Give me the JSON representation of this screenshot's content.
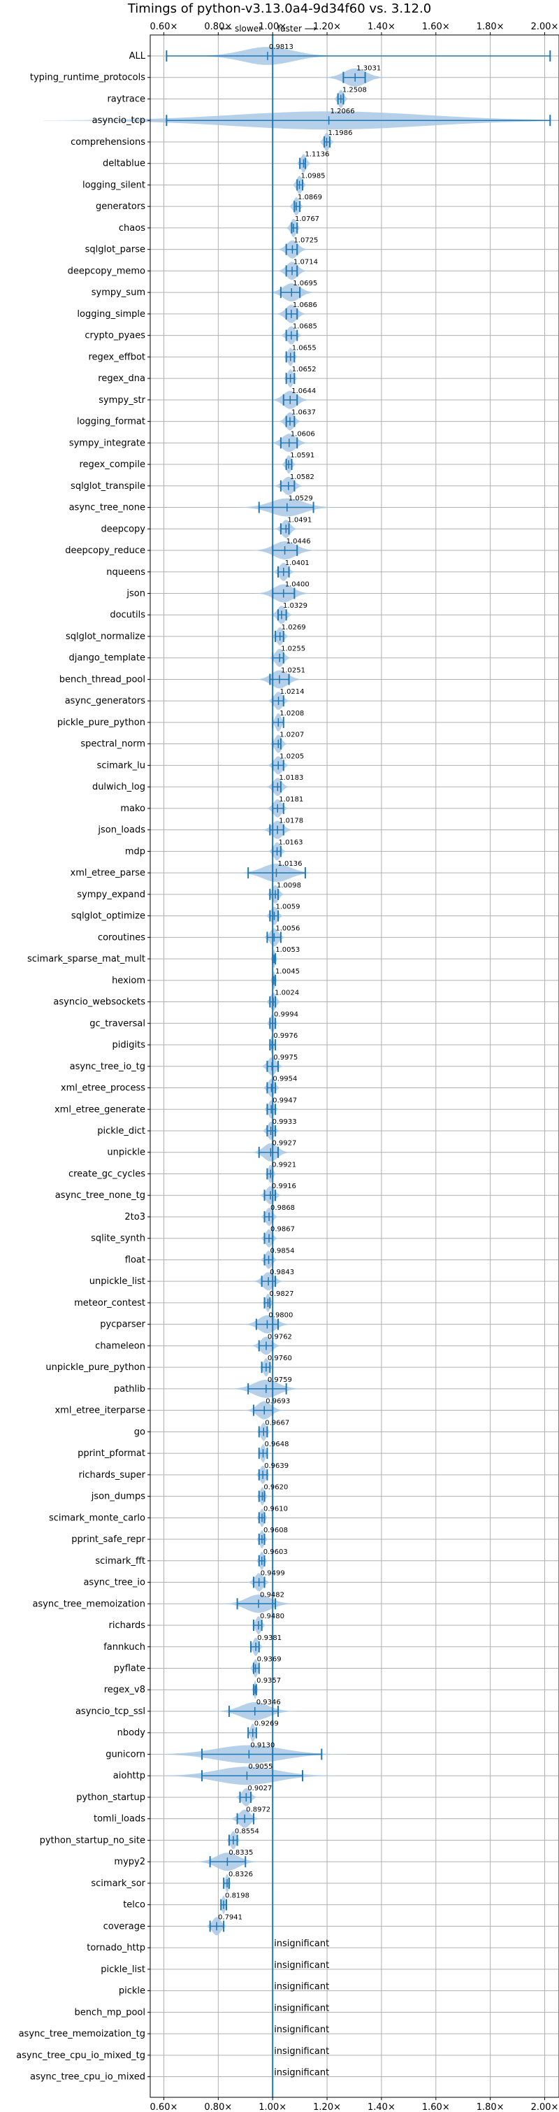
{
  "chart_data": {
    "type": "violin",
    "title": "Timings of python-v3.13.0a4-9d34f60 vs. 3.12.0",
    "subtitle_left": "⟵ slower",
    "subtitle_right": "faster ⟶",
    "xlim": [
      0.55,
      2.05
    ],
    "xticks": [
      0.6,
      0.8,
      1.0,
      1.2,
      1.4,
      1.6,
      1.8,
      2.0
    ],
    "xtick_labels": [
      "0.60×",
      "0.80×",
      "1.00×",
      "1.20×",
      "1.40×",
      "1.60×",
      "1.80×",
      "2.00×"
    ],
    "reference_line": 1.0,
    "insignificant_label": "insignificant",
    "grid": true,
    "benchmarks": [
      {
        "name": "ALL",
        "value": 0.9813,
        "label": "0.9813",
        "min": 0.61,
        "max": 2.02,
        "spread": 0.09
      },
      {
        "name": "typing_runtime_protocols",
        "value": 1.3031,
        "label": "1.3031",
        "min": 1.26,
        "max": 1.34,
        "spread": 0.04
      },
      {
        "name": "raytrace",
        "value": 1.2508,
        "label": "1.2508",
        "min": 1.24,
        "max": 1.26,
        "spread": 0.01
      },
      {
        "name": "asyncio_tcp",
        "value": 1.2066,
        "label": "1.2066",
        "min": 0.61,
        "max": 2.02,
        "spread": 0.35
      },
      {
        "name": "comprehensions",
        "value": 1.1986,
        "label": "1.1986",
        "min": 1.19,
        "max": 1.21,
        "spread": 0.01
      },
      {
        "name": "deltablue",
        "value": 1.1136,
        "label": "1.1136",
        "min": 1.1,
        "max": 1.12,
        "spread": 0.01
      },
      {
        "name": "logging_silent",
        "value": 1.0985,
        "label": "1.0985",
        "min": 1.09,
        "max": 1.11,
        "spread": 0.01
      },
      {
        "name": "generators",
        "value": 1.0869,
        "label": "1.0869",
        "min": 1.08,
        "max": 1.1,
        "spread": 0.01
      },
      {
        "name": "chaos",
        "value": 1.0767,
        "label": "1.0767",
        "min": 1.07,
        "max": 1.09,
        "spread": 0.01
      },
      {
        "name": "sqlglot_parse",
        "value": 1.0725,
        "label": "1.0725",
        "min": 1.05,
        "max": 1.09,
        "spread": 0.02
      },
      {
        "name": "deepcopy_memo",
        "value": 1.0714,
        "label": "1.0714",
        "min": 1.05,
        "max": 1.09,
        "spread": 0.02
      },
      {
        "name": "sympy_sum",
        "value": 1.0695,
        "label": "1.0695",
        "min": 1.03,
        "max": 1.1,
        "spread": 0.03
      },
      {
        "name": "logging_simple",
        "value": 1.0686,
        "label": "1.0686",
        "min": 1.05,
        "max": 1.09,
        "spread": 0.02
      },
      {
        "name": "crypto_pyaes",
        "value": 1.0685,
        "label": "1.0685",
        "min": 1.05,
        "max": 1.09,
        "spread": 0.015
      },
      {
        "name": "regex_effbot",
        "value": 1.0655,
        "label": "1.0655",
        "min": 1.05,
        "max": 1.08,
        "spread": 0.01
      },
      {
        "name": "regex_dna",
        "value": 1.0652,
        "label": "1.0652",
        "min": 1.05,
        "max": 1.08,
        "spread": 0.01
      },
      {
        "name": "sympy_str",
        "value": 1.0644,
        "label": "1.0644",
        "min": 1.04,
        "max": 1.09,
        "spread": 0.025
      },
      {
        "name": "logging_format",
        "value": 1.0637,
        "label": "1.0637",
        "min": 1.05,
        "max": 1.08,
        "spread": 0.015
      },
      {
        "name": "sympy_integrate",
        "value": 1.0606,
        "label": "1.0606",
        "min": 1.03,
        "max": 1.09,
        "spread": 0.025
      },
      {
        "name": "regex_compile",
        "value": 1.0591,
        "label": "1.0591",
        "min": 1.05,
        "max": 1.07,
        "spread": 0.01
      },
      {
        "name": "sqlglot_transpile",
        "value": 1.0582,
        "label": "1.0582",
        "min": 1.03,
        "max": 1.08,
        "spread": 0.02
      },
      {
        "name": "async_tree_none",
        "value": 1.0529,
        "label": "1.0529",
        "min": 0.95,
        "max": 1.15,
        "spread": 0.06
      },
      {
        "name": "deepcopy",
        "value": 1.0491,
        "label": "1.0491",
        "min": 1.03,
        "max": 1.06,
        "spread": 0.015
      },
      {
        "name": "deepcopy_reduce",
        "value": 1.0446,
        "label": "1.0446",
        "min": 1.0,
        "max": 1.09,
        "spread": 0.04
      },
      {
        "name": "nqueens",
        "value": 1.0401,
        "label": "1.0401",
        "min": 1.02,
        "max": 1.06,
        "spread": 0.015
      },
      {
        "name": "json",
        "value": 1.04,
        "label": "1.0400",
        "min": 1.0,
        "max": 1.08,
        "spread": 0.035
      },
      {
        "name": "docutils",
        "value": 1.0329,
        "label": "1.0329",
        "min": 1.02,
        "max": 1.05,
        "spread": 0.015
      },
      {
        "name": "sqlglot_normalize",
        "value": 1.0269,
        "label": "1.0269",
        "min": 1.01,
        "max": 1.04,
        "spread": 0.012
      },
      {
        "name": "django_template",
        "value": 1.0255,
        "label": "1.0255",
        "min": 1.0,
        "max": 1.04,
        "spread": 0.015
      },
      {
        "name": "bench_thread_pool",
        "value": 1.0251,
        "label": "1.0251",
        "min": 0.99,
        "max": 1.06,
        "spread": 0.03
      },
      {
        "name": "async_generators",
        "value": 1.0214,
        "label": "1.0214",
        "min": 1.0,
        "max": 1.04,
        "spread": 0.015
      },
      {
        "name": "pickle_pure_python",
        "value": 1.0208,
        "label": "1.0208",
        "min": 1.0,
        "max": 1.04,
        "spread": 0.01
      },
      {
        "name": "spectral_norm",
        "value": 1.0207,
        "label": "1.0207",
        "min": 1.0,
        "max": 1.03,
        "spread": 0.012
      },
      {
        "name": "scimark_lu",
        "value": 1.0205,
        "label": "1.0205",
        "min": 1.0,
        "max": 1.04,
        "spread": 0.015
      },
      {
        "name": "dulwich_log",
        "value": 1.0183,
        "label": "1.0183",
        "min": 1.0,
        "max": 1.03,
        "spread": 0.015
      },
      {
        "name": "mako",
        "value": 1.0181,
        "label": "1.0181",
        "min": 1.0,
        "max": 1.04,
        "spread": 0.015
      },
      {
        "name": "json_loads",
        "value": 1.0178,
        "label": "1.0178",
        "min": 0.99,
        "max": 1.04,
        "spread": 0.02
      },
      {
        "name": "mdp",
        "value": 1.0163,
        "label": "1.0163",
        "min": 1.0,
        "max": 1.03,
        "spread": 0.012
      },
      {
        "name": "xml_etree_parse",
        "value": 1.0136,
        "label": "1.0136",
        "min": 0.91,
        "max": 1.12,
        "spread": 0.05
      },
      {
        "name": "sympy_expand",
        "value": 1.0098,
        "label": "1.0098",
        "min": 0.99,
        "max": 1.02,
        "spread": 0.012
      },
      {
        "name": "sqlglot_optimize",
        "value": 1.0059,
        "label": "1.0059",
        "min": 0.99,
        "max": 1.02,
        "spread": 0.012
      },
      {
        "name": "coroutines",
        "value": 1.0056,
        "label": "1.0056",
        "min": 0.98,
        "max": 1.03,
        "spread": 0.015
      },
      {
        "name": "scimark_sparse_mat_mult",
        "value": 1.0053,
        "label": "1.0053",
        "min": 1.0,
        "max": 1.01,
        "spread": 0.005
      },
      {
        "name": "hexiom",
        "value": 1.0045,
        "label": "1.0045",
        "min": 1.0,
        "max": 1.01,
        "spread": 0.005
      },
      {
        "name": "asyncio_websockets",
        "value": 1.0024,
        "label": "1.0024",
        "min": 0.99,
        "max": 1.01,
        "spread": 0.01
      },
      {
        "name": "gc_traversal",
        "value": 0.9994,
        "label": "0.9994",
        "min": 0.99,
        "max": 1.01,
        "spread": 0.008
      },
      {
        "name": "pidigits",
        "value": 0.9976,
        "label": "0.9976",
        "min": 0.99,
        "max": 1.01,
        "spread": 0.005
      },
      {
        "name": "async_tree_io_tg",
        "value": 0.9975,
        "label": "0.9975",
        "min": 0.98,
        "max": 1.02,
        "spread": 0.015
      },
      {
        "name": "xml_etree_process",
        "value": 0.9954,
        "label": "0.9954",
        "min": 0.98,
        "max": 1.01,
        "spread": 0.012
      },
      {
        "name": "xml_etree_generate",
        "value": 0.9947,
        "label": "0.9947",
        "min": 0.98,
        "max": 1.01,
        "spread": 0.01
      },
      {
        "name": "pickle_dict",
        "value": 0.9933,
        "label": "0.9933",
        "min": 0.98,
        "max": 1.01,
        "spread": 0.012
      },
      {
        "name": "unpickle",
        "value": 0.9927,
        "label": "0.9927",
        "min": 0.95,
        "max": 1.02,
        "spread": 0.025
      },
      {
        "name": "create_gc_cycles",
        "value": 0.9921,
        "label": "0.9921",
        "min": 0.98,
        "max": 1.0,
        "spread": 0.008
      },
      {
        "name": "async_tree_none_tg",
        "value": 0.9916,
        "label": "0.9916",
        "min": 0.97,
        "max": 1.01,
        "spread": 0.015
      },
      {
        "name": "2to3",
        "value": 0.9868,
        "label": "0.9868",
        "min": 0.97,
        "max": 1.0,
        "spread": 0.012
      },
      {
        "name": "sqlite_synth",
        "value": 0.9867,
        "label": "0.9867",
        "min": 0.97,
        "max": 1.0,
        "spread": 0.012
      },
      {
        "name": "float",
        "value": 0.9854,
        "label": "0.9854",
        "min": 0.97,
        "max": 1.0,
        "spread": 0.012
      },
      {
        "name": "unpickle_list",
        "value": 0.9843,
        "label": "0.9843",
        "min": 0.96,
        "max": 1.01,
        "spread": 0.02
      },
      {
        "name": "meteor_contest",
        "value": 0.9827,
        "label": "0.9827",
        "min": 0.97,
        "max": 0.99,
        "spread": 0.008
      },
      {
        "name": "pycparser",
        "value": 0.98,
        "label": "0.9800",
        "min": 0.94,
        "max": 1.02,
        "spread": 0.03
      },
      {
        "name": "chameleon",
        "value": 0.9762,
        "label": "0.9762",
        "min": 0.95,
        "max": 1.0,
        "spread": 0.02
      },
      {
        "name": "unpickle_pure_python",
        "value": 0.976,
        "label": "0.9760",
        "min": 0.96,
        "max": 0.99,
        "spread": 0.01
      },
      {
        "name": "pathlib",
        "value": 0.9759,
        "label": "0.9759",
        "min": 0.91,
        "max": 1.05,
        "spread": 0.045
      },
      {
        "name": "xml_etree_iterparse",
        "value": 0.9693,
        "label": "0.9693",
        "min": 0.93,
        "max": 1.0,
        "spread": 0.025
      },
      {
        "name": "go",
        "value": 0.9667,
        "label": "0.9667",
        "min": 0.95,
        "max": 0.98,
        "spread": 0.01
      },
      {
        "name": "pprint_pformat",
        "value": 0.9648,
        "label": "0.9648",
        "min": 0.95,
        "max": 0.98,
        "spread": 0.008
      },
      {
        "name": "richards_super",
        "value": 0.9639,
        "label": "0.9639",
        "min": 0.95,
        "max": 0.98,
        "spread": 0.01
      },
      {
        "name": "json_dumps",
        "value": 0.962,
        "label": "0.9620",
        "min": 0.95,
        "max": 0.97,
        "spread": 0.008
      },
      {
        "name": "scimark_monte_carlo",
        "value": 0.961,
        "label": "0.9610",
        "min": 0.95,
        "max": 0.97,
        "spread": 0.008
      },
      {
        "name": "pprint_safe_repr",
        "value": 0.9608,
        "label": "0.9608",
        "min": 0.95,
        "max": 0.97,
        "spread": 0.008
      },
      {
        "name": "scimark_fft",
        "value": 0.9603,
        "label": "0.9603",
        "min": 0.95,
        "max": 0.97,
        "spread": 0.008
      },
      {
        "name": "async_tree_io",
        "value": 0.9499,
        "label": "0.9499",
        "min": 0.93,
        "max": 0.97,
        "spread": 0.015
      },
      {
        "name": "async_tree_memoization",
        "value": 0.9482,
        "label": "0.9482",
        "min": 0.87,
        "max": 1.01,
        "spread": 0.045
      },
      {
        "name": "richards",
        "value": 0.948,
        "label": "0.9480",
        "min": 0.93,
        "max": 0.96,
        "spread": 0.01
      },
      {
        "name": "fannkuch",
        "value": 0.9381,
        "label": "0.9381",
        "min": 0.92,
        "max": 0.95,
        "spread": 0.01
      },
      {
        "name": "pyflate",
        "value": 0.9369,
        "label": "0.9369",
        "min": 0.93,
        "max": 0.95,
        "spread": 0.008
      },
      {
        "name": "regex_v8",
        "value": 0.9357,
        "label": "0.9357",
        "min": 0.93,
        "max": 0.94,
        "spread": 0.005
      },
      {
        "name": "asyncio_tcp_ssl",
        "value": 0.9346,
        "label": "0.9346",
        "min": 0.84,
        "max": 1.02,
        "spread": 0.05
      },
      {
        "name": "nbody",
        "value": 0.9269,
        "label": "0.9269",
        "min": 0.91,
        "max": 0.94,
        "spread": 0.008
      },
      {
        "name": "gunicorn",
        "value": 0.913,
        "label": "0.9130",
        "min": 0.74,
        "max": 1.18,
        "spread": 0.12
      },
      {
        "name": "aiohttp",
        "value": 0.9055,
        "label": "0.9055",
        "min": 0.74,
        "max": 1.11,
        "spread": 0.11
      },
      {
        "name": "python_startup",
        "value": 0.9027,
        "label": "0.9027",
        "min": 0.88,
        "max": 0.92,
        "spread": 0.015
      },
      {
        "name": "tomli_loads",
        "value": 0.8972,
        "label": "0.8972",
        "min": 0.87,
        "max": 0.93,
        "spread": 0.02
      },
      {
        "name": "python_startup_no_site",
        "value": 0.8554,
        "label": "0.8554",
        "min": 0.84,
        "max": 0.87,
        "spread": 0.01
      },
      {
        "name": "mypy2",
        "value": 0.8335,
        "label": "0.8335",
        "min": 0.77,
        "max": 0.9,
        "spread": 0.04
      },
      {
        "name": "scimark_sor",
        "value": 0.8326,
        "label": "0.8326",
        "min": 0.82,
        "max": 0.84,
        "spread": 0.006
      },
      {
        "name": "telco",
        "value": 0.8198,
        "label": "0.8198",
        "min": 0.81,
        "max": 0.83,
        "spread": 0.006
      },
      {
        "name": "coverage",
        "value": 0.7941,
        "label": "0.7941",
        "min": 0.77,
        "max": 0.82,
        "spread": 0.015
      },
      {
        "name": "tornado_http",
        "insignificant": true
      },
      {
        "name": "pickle_list",
        "insignificant": true
      },
      {
        "name": "pickle",
        "insignificant": true
      },
      {
        "name": "bench_mp_pool",
        "insignificant": true
      },
      {
        "name": "async_tree_memoization_tg",
        "insignificant": true
      },
      {
        "name": "async_tree_cpu_io_mixed_tg",
        "insignificant": true
      },
      {
        "name": "async_tree_cpu_io_mixed",
        "insignificant": true
      }
    ]
  },
  "colors": {
    "violin_fill": "#a8c8e4",
    "marker": "#1f77b4",
    "reference_line": "#1f77b4",
    "grid": "#b0b0b0",
    "highlight": "#e8a0b0"
  }
}
